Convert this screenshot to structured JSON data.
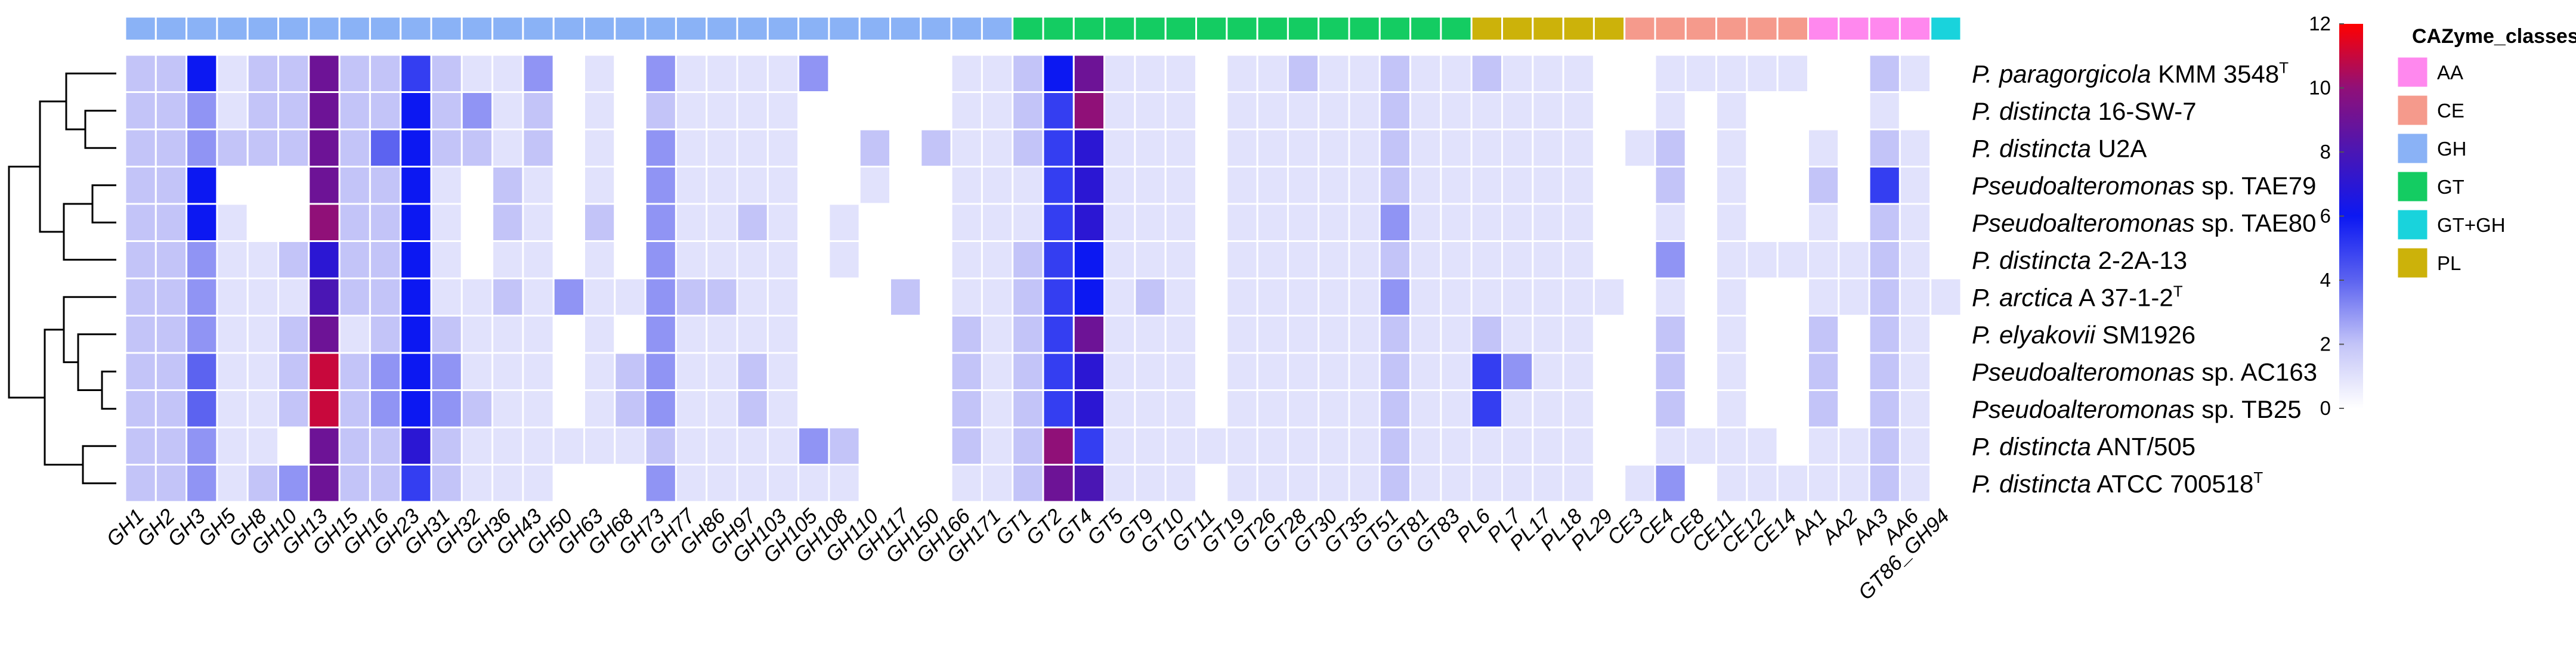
{
  "chart_data": {
    "type": "heatmap",
    "columns": [
      "GH1",
      "GH2",
      "GH3",
      "GH5",
      "GH8",
      "GH10",
      "GH13",
      "GH15",
      "GH16",
      "GH23",
      "GH31",
      "GH32",
      "GH36",
      "GH43",
      "GH50",
      "GH63",
      "GH68",
      "GH73",
      "GH77",
      "GH86",
      "GH97",
      "GH103",
      "GH105",
      "GH108",
      "GH110",
      "GH117",
      "GH150",
      "GH166",
      "GH171",
      "GT1",
      "GT2",
      "GT4",
      "GT5",
      "GT9",
      "GT10",
      "GT11",
      "GT19",
      "GT26",
      "GT28",
      "GT30",
      "GT35",
      "GT51",
      "GT81",
      "GT83",
      "PL6",
      "PL7",
      "PL17",
      "PL18",
      "PL29",
      "CE3",
      "CE4",
      "CE8",
      "CE11",
      "CE12",
      "CE14",
      "AA1",
      "AA2",
      "AA3",
      "AA6",
      "GT86_GH94"
    ],
    "column_classes": [
      "GH",
      "GH",
      "GH",
      "GH",
      "GH",
      "GH",
      "GH",
      "GH",
      "GH",
      "GH",
      "GH",
      "GH",
      "GH",
      "GH",
      "GH",
      "GH",
      "GH",
      "GH",
      "GH",
      "GH",
      "GH",
      "GH",
      "GH",
      "GH",
      "GH",
      "GH",
      "GH",
      "GH",
      "GH",
      "GT",
      "GT",
      "GT",
      "GT",
      "GT",
      "GT",
      "GT",
      "GT",
      "GT",
      "GT",
      "GT",
      "GT",
      "GT",
      "GT",
      "GT",
      "PL",
      "PL",
      "PL",
      "PL",
      "PL",
      "CE",
      "CE",
      "CE",
      "CE",
      "CE",
      "CE",
      "AA",
      "AA",
      "AA",
      "AA",
      "GT+GH"
    ],
    "rows": [
      {
        "prefix": "P. paragorgicola",
        "rest": " KMM 3548",
        "sup": "T"
      },
      {
        "prefix": "P. distincta",
        "rest": " 16-SW-7",
        "sup": ""
      },
      {
        "prefix": "P. distincta",
        "rest": " U2A",
        "sup": ""
      },
      {
        "prefix": "Pseudoalteromonas",
        "rest": " sp. TAE79",
        "sup": ""
      },
      {
        "prefix": "Pseudoalteromonas",
        "rest": " sp. TAE80",
        "sup": ""
      },
      {
        "prefix": "P. distincta",
        "rest": " 2-2A-13",
        "sup": ""
      },
      {
        "prefix": "P. arctica",
        "rest": " A 37-1-2",
        "sup": "T"
      },
      {
        "prefix": "P. elyakovii",
        "rest": " SM1926",
        "sup": ""
      },
      {
        "prefix": "Pseudoalteromonas",
        "rest": " sp. AC163",
        "sup": ""
      },
      {
        "prefix": "Pseudoalteromonas",
        "rest": " sp. TB25",
        "sup": ""
      },
      {
        "prefix": "P. distincta",
        "rest": " ANT/505",
        "sup": ""
      },
      {
        "prefix": "P. distincta",
        "rest": " ATCC 700518",
        "sup": "T"
      }
    ],
    "values": [
      [
        2,
        2,
        6,
        1,
        2,
        2,
        9,
        2,
        2,
        5,
        2,
        1,
        1,
        3,
        0,
        1,
        0,
        3,
        1,
        1,
        1,
        1,
        3,
        0,
        0,
        0,
        0,
        1,
        1,
        2,
        6,
        9,
        1,
        1,
        1,
        0,
        1,
        1,
        2,
        1,
        1,
        2,
        1,
        1,
        2,
        1,
        1,
        1,
        0,
        0,
        1,
        1,
        1,
        1,
        1,
        0,
        0,
        2,
        1,
        0
      ],
      [
        2,
        2,
        3,
        1,
        2,
        2,
        9,
        2,
        2,
        6,
        2,
        3,
        1,
        2,
        0,
        1,
        0,
        2,
        1,
        1,
        1,
        1,
        0,
        0,
        0,
        0,
        0,
        1,
        1,
        2,
        5,
        10,
        1,
        1,
        1,
        0,
        1,
        1,
        1,
        1,
        1,
        2,
        1,
        1,
        1,
        1,
        1,
        1,
        0,
        0,
        1,
        0,
        1,
        0,
        0,
        0,
        0,
        1,
        0,
        0
      ],
      [
        2,
        2,
        3,
        2,
        2,
        2,
        9,
        2,
        4,
        6,
        2,
        2,
        1,
        2,
        0,
        1,
        0,
        3,
        1,
        1,
        1,
        1,
        0,
        0,
        2,
        0,
        2,
        1,
        1,
        2,
        5,
        7,
        1,
        1,
        1,
        0,
        1,
        1,
        1,
        1,
        1,
        2,
        1,
        1,
        1,
        1,
        1,
        1,
        0,
        1,
        2,
        0,
        1,
        0,
        0,
        1,
        0,
        2,
        1,
        0
      ],
      [
        2,
        2,
        6,
        0,
        0,
        0,
        9,
        2,
        2,
        6,
        1,
        0,
        2,
        1,
        0,
        1,
        0,
        3,
        1,
        1,
        1,
        1,
        0,
        0,
        1,
        0,
        0,
        1,
        1,
        1,
        5,
        7,
        1,
        1,
        1,
        0,
        1,
        1,
        1,
        1,
        1,
        2,
        1,
        1,
        1,
        1,
        1,
        1,
        0,
        0,
        2,
        0,
        1,
        0,
        0,
        2,
        0,
        5,
        1,
        0
      ],
      [
        2,
        2,
        6,
        1,
        0,
        0,
        10,
        2,
        2,
        6,
        1,
        0,
        2,
        1,
        0,
        2,
        0,
        3,
        1,
        1,
        2,
        1,
        0,
        1,
        0,
        0,
        0,
        1,
        1,
        1,
        5,
        7,
        1,
        1,
        1,
        0,
        1,
        1,
        1,
        1,
        1,
        3,
        1,
        1,
        1,
        1,
        1,
        1,
        0,
        0,
        1,
        0,
        1,
        0,
        0,
        1,
        0,
        2,
        1,
        0
      ],
      [
        2,
        2,
        3,
        1,
        1,
        2,
        7,
        2,
        2,
        6,
        1,
        0,
        1,
        1,
        0,
        1,
        0,
        3,
        1,
        1,
        1,
        1,
        0,
        1,
        0,
        0,
        0,
        1,
        1,
        2,
        5,
        6,
        1,
        1,
        1,
        0,
        1,
        1,
        1,
        1,
        1,
        2,
        1,
        1,
        1,
        1,
        1,
        1,
        0,
        0,
        3,
        0,
        1,
        1,
        1,
        1,
        1,
        2,
        1,
        0
      ],
      [
        2,
        2,
        3,
        1,
        1,
        1,
        8,
        2,
        2,
        6,
        1,
        1,
        2,
        1,
        3,
        1,
        1,
        3,
        2,
        2,
        1,
        1,
        0,
        0,
        0,
        2,
        0,
        1,
        1,
        2,
        5,
        6,
        1,
        2,
        1,
        0,
        1,
        1,
        1,
        1,
        1,
        3,
        1,
        1,
        1,
        1,
        1,
        1,
        1,
        0,
        1,
        0,
        1,
        0,
        0,
        1,
        1,
        2,
        1,
        1
      ],
      [
        2,
        2,
        3,
        1,
        1,
        2,
        9,
        1,
        2,
        6,
        2,
        1,
        1,
        1,
        0,
        1,
        0,
        3,
        1,
        1,
        1,
        1,
        0,
        0,
        0,
        0,
        0,
        2,
        1,
        2,
        5,
        9,
        1,
        1,
        1,
        0,
        1,
        1,
        1,
        1,
        1,
        2,
        1,
        1,
        2,
        1,
        1,
        1,
        0,
        0,
        2,
        0,
        1,
        0,
        0,
        2,
        0,
        2,
        1,
        0
      ],
      [
        2,
        2,
        4,
        1,
        1,
        2,
        11,
        2,
        3,
        6,
        3,
        1,
        1,
        1,
        0,
        1,
        2,
        3,
        1,
        1,
        2,
        1,
        0,
        0,
        0,
        0,
        0,
        2,
        1,
        2,
        5,
        7,
        1,
        1,
        1,
        0,
        1,
        1,
        1,
        1,
        1,
        2,
        1,
        1,
        5,
        3,
        1,
        1,
        0,
        0,
        2,
        0,
        1,
        0,
        0,
        2,
        0,
        2,
        1,
        0
      ],
      [
        2,
        2,
        4,
        1,
        1,
        2,
        11,
        2,
        3,
        6,
        3,
        2,
        1,
        1,
        0,
        1,
        2,
        3,
        1,
        1,
        2,
        1,
        0,
        0,
        0,
        0,
        0,
        2,
        1,
        2,
        5,
        7,
        1,
        1,
        1,
        0,
        1,
        1,
        1,
        1,
        1,
        2,
        1,
        1,
        5,
        1,
        1,
        1,
        0,
        0,
        2,
        0,
        1,
        0,
        0,
        2,
        0,
        2,
        1,
        0
      ],
      [
        2,
        2,
        3,
        1,
        1,
        0,
        9,
        2,
        2,
        7,
        2,
        1,
        1,
        1,
        1,
        1,
        1,
        2,
        1,
        1,
        1,
        1,
        3,
        2,
        0,
        0,
        0,
        2,
        1,
        2,
        10,
        5,
        1,
        1,
        1,
        1,
        1,
        1,
        1,
        1,
        1,
        2,
        1,
        1,
        1,
        1,
        1,
        1,
        0,
        0,
        1,
        1,
        1,
        1,
        0,
        1,
        1,
        2,
        1,
        0
      ],
      [
        2,
        2,
        3,
        1,
        2,
        3,
        9,
        2,
        2,
        5,
        2,
        1,
        1,
        1,
        0,
        0,
        0,
        3,
        1,
        1,
        1,
        1,
        1,
        1,
        0,
        0,
        0,
        1,
        1,
        2,
        9,
        8,
        1,
        1,
        1,
        0,
        1,
        1,
        1,
        1,
        1,
        2,
        1,
        1,
        1,
        1,
        1,
        1,
        0,
        1,
        3,
        0,
        1,
        1,
        1,
        1,
        1,
        2,
        1,
        0
      ]
    ],
    "scale": {
      "min": 0,
      "max": 12,
      "ticks": [
        0,
        2,
        4,
        6,
        8,
        10,
        12
      ]
    },
    "legend": {
      "title": "CAZyme_classes",
      "entries": [
        {
          "label": "AA",
          "color": "#FF88EE"
        },
        {
          "label": "CE",
          "color": "#F59A8C"
        },
        {
          "label": "GH",
          "color": "#8AB2F6"
        },
        {
          "label": "GT",
          "color": "#14CC62"
        },
        {
          "label": "GT+GH",
          "color": "#19D3DC"
        },
        {
          "label": "PL",
          "color": "#CCB20A"
        }
      ]
    },
    "color_stops": [
      {
        "v": 0,
        "color": "#FFFFFF"
      },
      {
        "v": 2,
        "color": "#C3C4F8"
      },
      {
        "v": 4,
        "color": "#5C63F0"
      },
      {
        "v": 6,
        "color": "#0C18F2"
      },
      {
        "v": 8,
        "color": "#4A16B4"
      },
      {
        "v": 10,
        "color": "#901078"
      },
      {
        "v": 12,
        "color": "#FF0000"
      }
    ],
    "dendrogram": "left"
  }
}
